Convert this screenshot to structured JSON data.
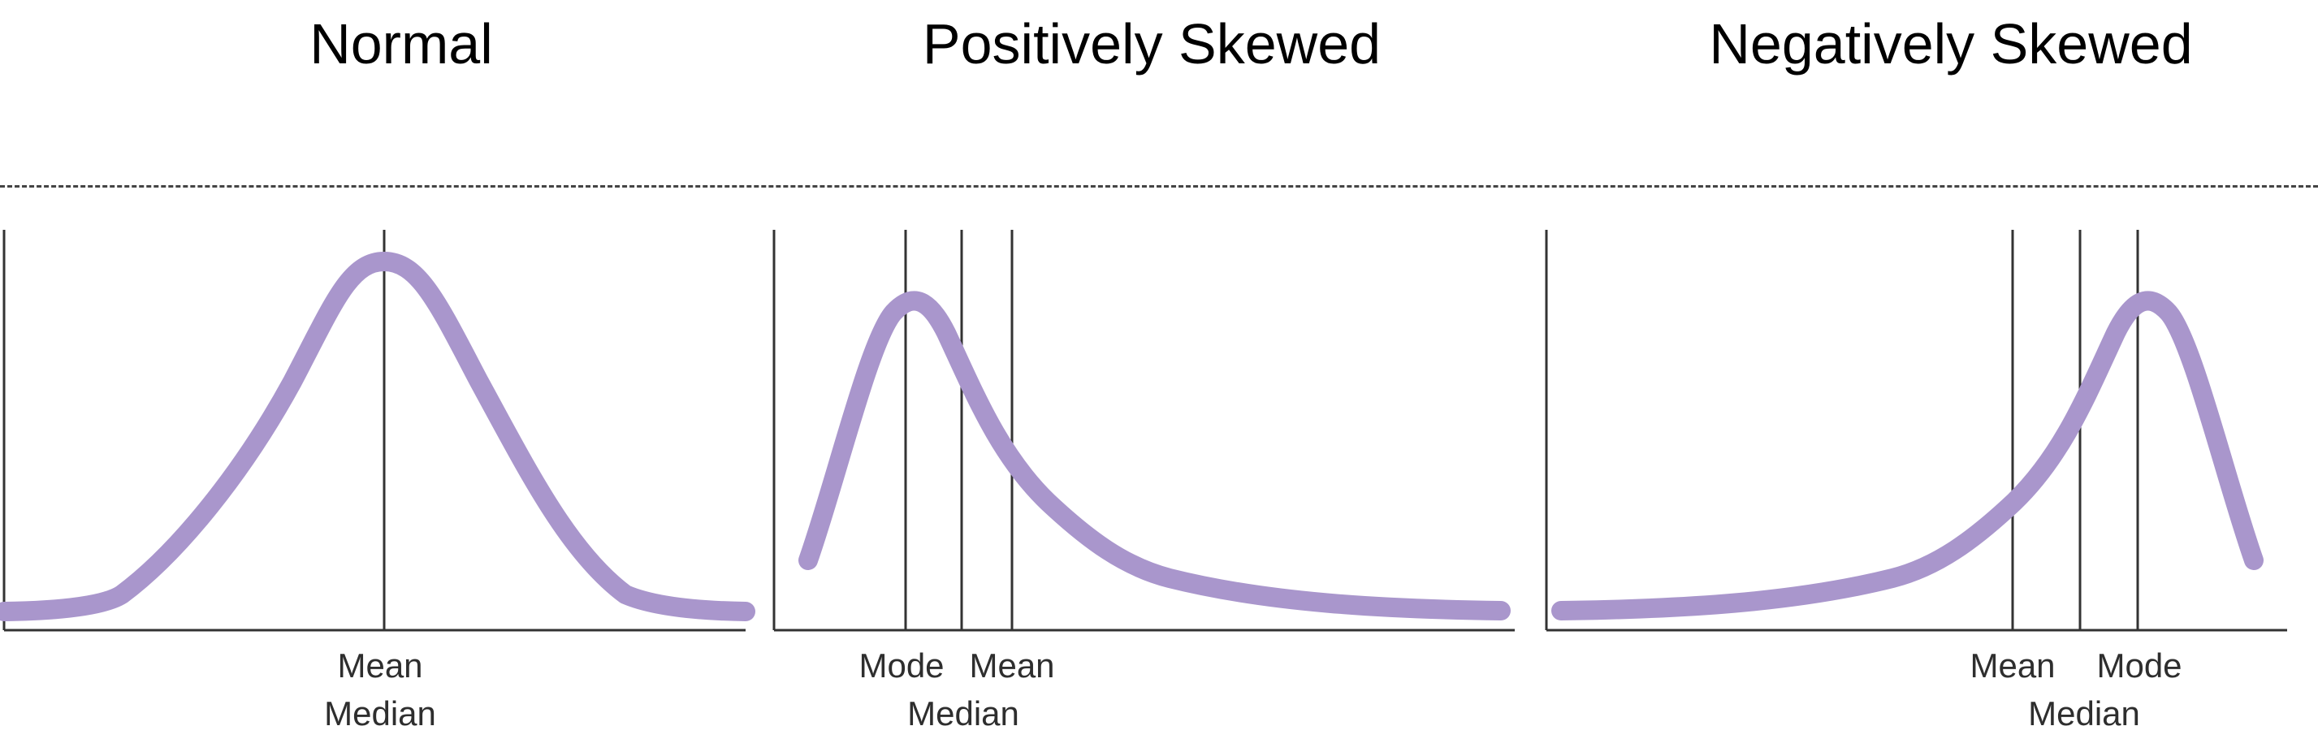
{
  "colors": {
    "curve": "#a996cc",
    "axis": "#333333",
    "divider": "#444444"
  },
  "titles": {
    "normal": "Normal",
    "positive": "Positively Skewed",
    "negative": "Negatively Skewed"
  },
  "labels": {
    "normal_mean": "Mean",
    "normal_median": "Median",
    "pos_mode": "Mode",
    "pos_mean": "Mean",
    "pos_median": "Median",
    "neg_mean": "Mean",
    "neg_mode": "Mode",
    "neg_median": "Median"
  }
}
